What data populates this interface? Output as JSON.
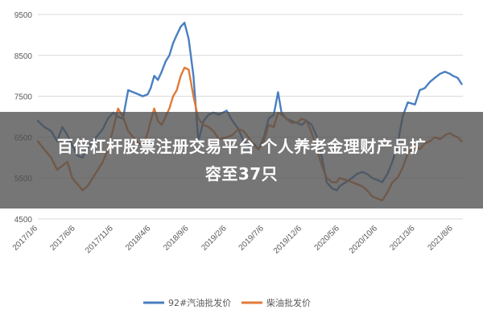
{
  "chart_data": {
    "type": "line",
    "title": "",
    "xlabel": "",
    "ylabel": "",
    "ylim": [
      4500,
      9500
    ],
    "yticks": [
      4500,
      5500,
      6500,
      7500,
      8500,
      9500
    ],
    "xlim": [
      "2017-01-06",
      "2021-09-15"
    ],
    "x_ticks": [
      "2017/1/6",
      "2017/6/6",
      "2017/11/6",
      "2018/4/6",
      "2018/9/6",
      "2019/2/6",
      "2019/7/6",
      "2019/12/6",
      "2020/5/6",
      "2020/10/6",
      "2021/3/6",
      "2021/8/6"
    ],
    "grid": true,
    "legend_position": "bottom",
    "colors": {
      "series_1": "#4a7fc1",
      "series_2": "#e07b39",
      "grid": "#d9d9d9",
      "axis_text": "#595959"
    },
    "series": [
      {
        "name": "92#汽油批发价",
        "points": [
          [
            "2017-01-06",
            6900
          ],
          [
            "2017-02-01",
            6750
          ],
          [
            "2017-03-01",
            6650
          ],
          [
            "2017-03-25",
            6400
          ],
          [
            "2017-04-15",
            6750
          ],
          [
            "2017-05-05",
            6550
          ],
          [
            "2017-05-25",
            6300
          ],
          [
            "2017-06-15",
            6050
          ],
          [
            "2017-07-05",
            6000
          ],
          [
            "2017-07-25",
            6250
          ],
          [
            "2017-08-15",
            6400
          ],
          [
            "2017-09-05",
            6550
          ],
          [
            "2017-09-25",
            6700
          ],
          [
            "2017-10-15",
            6950
          ],
          [
            "2017-11-06",
            7100
          ],
          [
            "2017-11-25",
            7000
          ],
          [
            "2017-12-15",
            6950
          ],
          [
            "2018-01-05",
            7650
          ],
          [
            "2018-01-25",
            7600
          ],
          [
            "2018-02-15",
            7550
          ],
          [
            "2018-03-05",
            7500
          ],
          [
            "2018-03-25",
            7550
          ],
          [
            "2018-04-06",
            7700
          ],
          [
            "2018-04-20",
            8000
          ],
          [
            "2018-05-05",
            7900
          ],
          [
            "2018-05-20",
            8100
          ],
          [
            "2018-06-05",
            8350
          ],
          [
            "2018-06-20",
            8500
          ],
          [
            "2018-07-05",
            8800
          ],
          [
            "2018-07-20",
            9000
          ],
          [
            "2018-08-05",
            9200
          ],
          [
            "2018-08-20",
            9300
          ],
          [
            "2018-09-06",
            8900
          ],
          [
            "2018-09-25",
            8000
          ],
          [
            "2018-10-15",
            6400
          ],
          [
            "2018-11-05",
            6900
          ],
          [
            "2018-11-25",
            7050
          ],
          [
            "2018-12-15",
            7100
          ],
          [
            "2019-01-05",
            7050
          ],
          [
            "2019-02-06",
            7150
          ],
          [
            "2019-03-01",
            6900
          ],
          [
            "2019-03-25",
            6700
          ],
          [
            "2019-04-15",
            6400
          ],
          [
            "2019-05-05",
            6300
          ],
          [
            "2019-05-25",
            6350
          ],
          [
            "2019-06-15",
            6200
          ],
          [
            "2019-07-06",
            6500
          ],
          [
            "2019-07-25",
            6950
          ],
          [
            "2019-08-15",
            7050
          ],
          [
            "2019-09-01",
            7600
          ],
          [
            "2019-09-15",
            7100
          ],
          [
            "2019-10-05",
            6950
          ],
          [
            "2019-10-25",
            6900
          ],
          [
            "2019-11-15",
            6850
          ],
          [
            "2019-12-06",
            6800
          ],
          [
            "2019-12-25",
            6900
          ],
          [
            "2020-01-15",
            6800
          ],
          [
            "2020-02-05",
            6500
          ],
          [
            "2020-02-25",
            6000
          ],
          [
            "2020-03-15",
            5400
          ],
          [
            "2020-04-05",
            5250
          ],
          [
            "2020-04-25",
            5200
          ],
          [
            "2020-05-06",
            5300
          ],
          [
            "2020-06-01",
            5400
          ],
          [
            "2020-06-25",
            5500
          ],
          [
            "2020-07-15",
            5600
          ],
          [
            "2020-08-05",
            5650
          ],
          [
            "2020-08-25",
            5600
          ],
          [
            "2020-09-15",
            5500
          ],
          [
            "2020-10-06",
            5450
          ],
          [
            "2020-10-25",
            5400
          ],
          [
            "2020-11-15",
            5600
          ],
          [
            "2020-12-05",
            5900
          ],
          [
            "2020-12-25",
            6300
          ],
          [
            "2021-01-15",
            7000
          ],
          [
            "2021-02-05",
            7350
          ],
          [
            "2021-03-06",
            7300
          ],
          [
            "2021-03-25",
            7650
          ],
          [
            "2021-04-15",
            7700
          ],
          [
            "2021-05-05",
            7850
          ],
          [
            "2021-05-25",
            7950
          ],
          [
            "2021-06-15",
            8050
          ],
          [
            "2021-07-05",
            8100
          ],
          [
            "2021-07-25",
            8050
          ],
          [
            "2021-08-06",
            8000
          ],
          [
            "2021-08-25",
            7950
          ],
          [
            "2021-09-10",
            7800
          ]
        ]
      },
      {
        "name": "柴油批发价",
        "points": [
          [
            "2017-01-06",
            6400
          ],
          [
            "2017-02-01",
            6200
          ],
          [
            "2017-03-01",
            6000
          ],
          [
            "2017-03-25",
            5700
          ],
          [
            "2017-04-15",
            5800
          ],
          [
            "2017-05-05",
            5900
          ],
          [
            "2017-05-25",
            5500
          ],
          [
            "2017-06-15",
            5350
          ],
          [
            "2017-07-05",
            5200
          ],
          [
            "2017-07-25",
            5300
          ],
          [
            "2017-08-15",
            5500
          ],
          [
            "2017-09-05",
            5700
          ],
          [
            "2017-09-25",
            5900
          ],
          [
            "2017-10-15",
            6200
          ],
          [
            "2017-11-06",
            6700
          ],
          [
            "2017-11-25",
            7200
          ],
          [
            "2017-12-15",
            7000
          ],
          [
            "2018-01-05",
            6650
          ],
          [
            "2018-01-25",
            6500
          ],
          [
            "2018-02-15",
            6350
          ],
          [
            "2018-03-05",
            6300
          ],
          [
            "2018-03-25",
            6600
          ],
          [
            "2018-04-06",
            6900
          ],
          [
            "2018-04-20",
            7200
          ],
          [
            "2018-05-05",
            6900
          ],
          [
            "2018-05-20",
            6800
          ],
          [
            "2018-06-05",
            7000
          ],
          [
            "2018-06-20",
            7200
          ],
          [
            "2018-07-05",
            7500
          ],
          [
            "2018-07-20",
            7650
          ],
          [
            "2018-08-05",
            8000
          ],
          [
            "2018-08-20",
            8200
          ],
          [
            "2018-09-06",
            8150
          ],
          [
            "2018-09-25",
            7500
          ],
          [
            "2018-10-15",
            6950
          ],
          [
            "2018-11-05",
            6800
          ],
          [
            "2018-11-25",
            6750
          ],
          [
            "2018-12-15",
            6650
          ],
          [
            "2019-01-05",
            6450
          ],
          [
            "2019-02-06",
            6500
          ],
          [
            "2019-03-01",
            6550
          ],
          [
            "2019-03-25",
            6700
          ],
          [
            "2019-04-15",
            6650
          ],
          [
            "2019-05-05",
            6500
          ],
          [
            "2019-05-25",
            6300
          ],
          [
            "2019-06-15",
            6200
          ],
          [
            "2019-07-06",
            6400
          ],
          [
            "2019-07-25",
            6800
          ],
          [
            "2019-08-15",
            6750
          ],
          [
            "2019-09-01",
            7100
          ],
          [
            "2019-09-15",
            7050
          ],
          [
            "2019-10-05",
            6950
          ],
          [
            "2019-10-25",
            6850
          ],
          [
            "2019-11-15",
            6850
          ],
          [
            "2019-12-06",
            6950
          ],
          [
            "2019-12-25",
            6900
          ],
          [
            "2020-01-15",
            6600
          ],
          [
            "2020-02-05",
            6200
          ],
          [
            "2020-02-25",
            5800
          ],
          [
            "2020-03-15",
            5500
          ],
          [
            "2020-04-05",
            5400
          ],
          [
            "2020-04-25",
            5400
          ],
          [
            "2020-05-06",
            5500
          ],
          [
            "2020-06-01",
            5450
          ],
          [
            "2020-06-25",
            5400
          ],
          [
            "2020-07-15",
            5350
          ],
          [
            "2020-08-05",
            5300
          ],
          [
            "2020-08-25",
            5200
          ],
          [
            "2020-09-15",
            5050
          ],
          [
            "2020-10-06",
            5000
          ],
          [
            "2020-10-25",
            4950
          ],
          [
            "2020-11-15",
            5150
          ],
          [
            "2020-12-05",
            5400
          ],
          [
            "2020-12-25",
            5500
          ],
          [
            "2021-01-15",
            5750
          ],
          [
            "2021-02-05",
            6100
          ],
          [
            "2021-03-06",
            6300
          ],
          [
            "2021-03-25",
            6200
          ],
          [
            "2021-04-15",
            6350
          ],
          [
            "2021-05-05",
            6400
          ],
          [
            "2021-05-25",
            6500
          ],
          [
            "2021-06-15",
            6450
          ],
          [
            "2021-07-05",
            6550
          ],
          [
            "2021-07-25",
            6600
          ],
          [
            "2021-08-06",
            6550
          ],
          [
            "2021-08-25",
            6500
          ],
          [
            "2021-09-10",
            6400
          ]
        ]
      }
    ]
  },
  "overlay": {
    "line1": "百倍杠杆股票注册交易平台 个人养老金理财产品扩",
    "line2": "容至37只"
  }
}
